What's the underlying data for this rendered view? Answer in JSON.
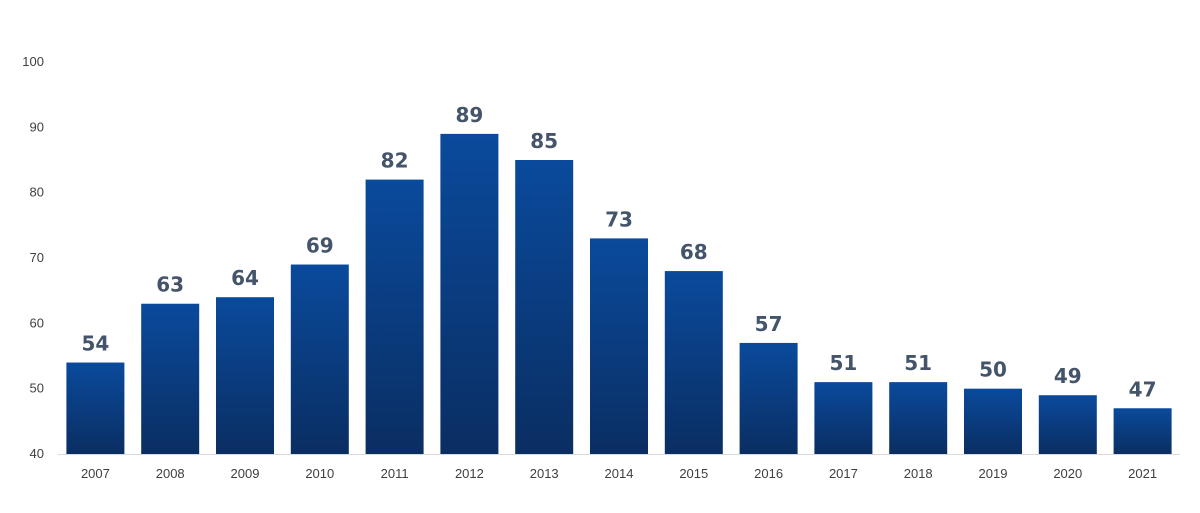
{
  "chart_data": {
    "type": "bar",
    "title": "",
    "xlabel": "",
    "ylabel": "",
    "categories": [
      "2007",
      "2008",
      "2009",
      "2010",
      "2011",
      "2012",
      "2013",
      "2014",
      "2015",
      "2016",
      "2017",
      "2018",
      "2019",
      "2020",
      "2021"
    ],
    "values": [
      54,
      63,
      64,
      69,
      82,
      89,
      85,
      73,
      68,
      57,
      51,
      51,
      50,
      49,
      47
    ],
    "ylim": [
      40,
      100
    ],
    "yticks": [
      40,
      50,
      60,
      70,
      80,
      90,
      100
    ],
    "grid": false,
    "legend": "none",
    "data_labels": true,
    "colors": {
      "bar_top": "#0a4a9c",
      "bar_bottom": "#0a2e62",
      "value_label": "#44546a",
      "tick_label": "#404040",
      "axis": "#d9d9d9"
    }
  }
}
